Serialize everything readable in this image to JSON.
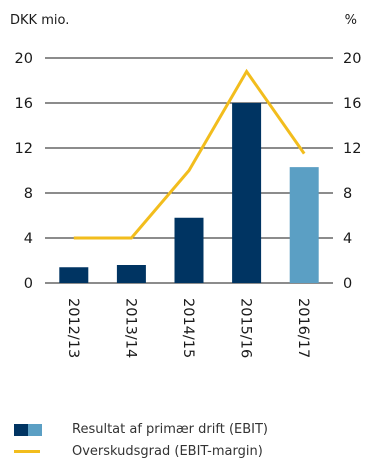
{
  "chart_data": {
    "type": "bar",
    "left_axis_unit": "DKK mio.",
    "right_axis_unit": "%",
    "ylim": [
      0,
      20
    ],
    "yticks": [
      "0",
      "4",
      "8",
      "12",
      "16",
      "20"
    ],
    "categories": [
      "2012/13",
      "2013/14",
      "2014/15",
      "2015/16",
      "2016/17"
    ],
    "series": [
      {
        "name": "Resultat af primær drift (EBIT)",
        "kind": "bar",
        "values": [
          1.4,
          1.6,
          5.8,
          16.0,
          10.3
        ],
        "colors": [
          "#003462",
          "#003462",
          "#003462",
          "#003462",
          "#5b9fc4"
        ]
      },
      {
        "name": "Overskudsgrad (EBIT-margin)",
        "kind": "line",
        "axis": "right",
        "values": [
          4.0,
          4.0,
          10.0,
          18.8,
          11.5
        ],
        "color": "#f2bd1d"
      }
    ],
    "grid": false
  },
  "legend": {
    "bar_label": "Resultat af primær drift (EBIT)",
    "line_label": "Overskudsgrad (EBIT-margin)",
    "bar_colors": [
      "#003462",
      "#5b9fc4"
    ],
    "line_color": "#f2bd1d"
  }
}
